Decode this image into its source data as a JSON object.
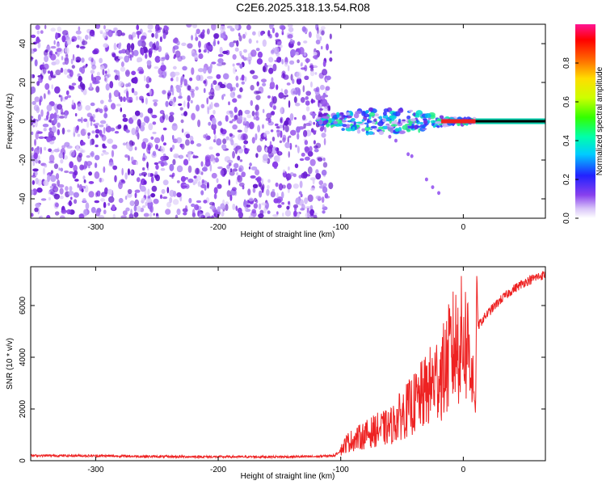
{
  "title": "C2E6.2025.318.13.54.R08",
  "chart_data": [
    {
      "type": "heatmap",
      "name": "spectrogram",
      "xlabel": "Height of straight line (km)",
      "ylabel": "Frequency (Hz)",
      "xlim": [
        -353,
        67
      ],
      "ylim": [
        -50,
        50
      ],
      "xticks": [
        -300,
        -200,
        -100,
        0
      ],
      "xtick_labels": [
        "-300",
        "-200",
        "-100",
        "0"
      ],
      "yticks": [
        -40,
        -20,
        0,
        20,
        40
      ],
      "ytick_labels": [
        "-40",
        "-20",
        "0",
        "20",
        "40"
      ],
      "noise_region_x": [
        -353,
        -108
      ],
      "signal_region_x": [
        -118,
        10
      ],
      "carrier_line_x": [
        10,
        67
      ],
      "carrier_frequency": 0,
      "colorbar": {
        "label": "Normalized spectral amplitude",
        "range": [
          0,
          1
        ],
        "ticks": [
          0,
          0.2,
          0.4,
          0.6,
          0.8
        ],
        "tick_labels": [
          "0.0",
          "0.2",
          "0.4",
          "0.6",
          "0.8"
        ]
      }
    },
    {
      "type": "line",
      "name": "snr",
      "xlabel": "Height of straight line (km)",
      "ylabel": "SNR (10 * v/v)",
      "xlim": [
        -353,
        67
      ],
      "ylim": [
        0,
        7500
      ],
      "xticks": [
        -300,
        -200,
        -100,
        0
      ],
      "xtick_labels": [
        "-300",
        "-200",
        "-100",
        "0"
      ],
      "yticks": [
        0,
        2000,
        4000,
        6000
      ],
      "ytick_labels": [
        "0",
        "2000",
        "4000",
        "6000"
      ],
      "color": "#ee2222",
      "series": [
        {
          "name": "SNR",
          "x": [
            -353,
            -300,
            -250,
            -200,
            -150,
            -120,
            -105,
            -100,
            -95,
            -90,
            -80,
            -70,
            -60,
            -50,
            -40,
            -30,
            -25,
            -20,
            -15,
            -10,
            -5,
            0,
            5,
            8,
            10,
            11,
            12,
            15,
            20,
            30,
            40,
            50,
            60,
            67
          ],
          "y": [
            200,
            190,
            160,
            150,
            150,
            160,
            200,
            400,
            700,
            800,
            1000,
            1200,
            1300,
            1800,
            2200,
            2700,
            3000,
            3300,
            3500,
            4200,
            4500,
            4700,
            4400,
            3000,
            1700,
            7300,
            5200,
            5400,
            5700,
            6200,
            6600,
            6900,
            7100,
            7200
          ]
        }
      ]
    }
  ]
}
